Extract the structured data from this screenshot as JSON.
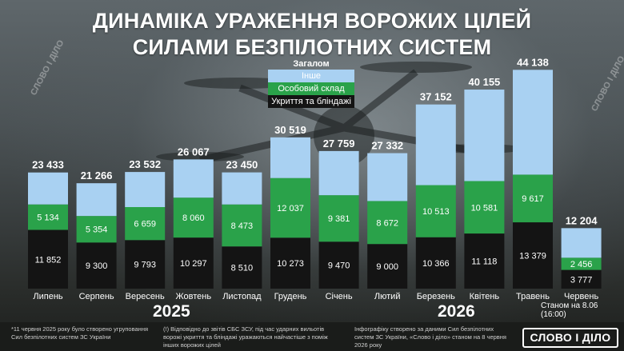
{
  "title_line1": "ДИНАМІКА УРАЖЕННЯ ВОРОЖИХ ЦІЛЕЙ",
  "title_line2": "СИЛАМИ БЕЗПІЛОТНИХ СИСТЕМ",
  "legend": {
    "title": "Загалом",
    "other": "Інше",
    "personnel": "Особовий склад",
    "shelters": "Укриття та бліндажі"
  },
  "years": [
    "2025",
    "2026"
  ],
  "as_of": "Станом на 8.06 (16:00)",
  "footnotes": [
    "*11 червня 2025 року було створено угруповання Сил безпілотних систем ЗС України",
    "(!) Відповідно до звітів СБС ЗСУ, під час ударних вильотів ворожі укриття та бліндажі уражаються найчастіше з поміж інших ворожих цілей",
    "Інфографіку створено за даними Сил безпілотних систем ЗС України, «Слово і діло» станом на 8 червня 2026 року"
  ],
  "logo": "СЛОВО І ДІЛО",
  "watermark": "СЛОВО І ДІЛО",
  "colors": {
    "other": "#a9d1f2",
    "personnel": "#2aa24a",
    "shelters": "#141414"
  },
  "chart_data": {
    "type": "bar",
    "stacked": true,
    "categories": [
      "Липень",
      "Серпень",
      "Вересень",
      "Жовтень",
      "Листопад",
      "Грудень",
      "Січень",
      "Лютий",
      "Березень",
      "Квітень",
      "Травень",
      "Червень"
    ],
    "totals": [
      23433,
      21266,
      23532,
      26067,
      23450,
      30519,
      27759,
      27332,
      37152,
      40155,
      44138,
      12204
    ],
    "total_labels": [
      "23 433",
      "21 266",
      "23 532",
      "26 067",
      "23 450",
      "30 519",
      "27 759",
      "27 332",
      "37 152",
      "40 155",
      "44 138",
      "12 204"
    ],
    "series": [
      {
        "name": "Укриття та бліндажі",
        "values": [
          11852,
          9300,
          9793,
          10297,
          8510,
          10273,
          9470,
          9000,
          10366,
          11118,
          13379,
          3777
        ],
        "labels": [
          "11 852",
          "9 300",
          "9 793",
          "10 297",
          "8 510",
          "10 273",
          "9 470",
          "9 000",
          "10 366",
          "11 118",
          "13 379",
          "3 777"
        ]
      },
      {
        "name": "Особовий склад",
        "values": [
          5134,
          5354,
          6659,
          8060,
          8473,
          12037,
          9381,
          8672,
          10513,
          10581,
          9617,
          2456
        ],
        "labels": [
          "5 134",
          "5 354",
          "6 659",
          "8 060",
          "8 473",
          "12 037",
          "9 381",
          "8 672",
          "10 513",
          "10 581",
          "9 617",
          "2 456"
        ]
      },
      {
        "name": "Інше",
        "values": [
          6447,
          6612,
          7080,
          7710,
          6467,
          8209,
          8908,
          9660,
          16273,
          18456,
          21142,
          5971
        ]
      }
    ],
    "ylim": [
      0,
      46000
    ],
    "grid": false,
    "legend_position": "top-center"
  }
}
